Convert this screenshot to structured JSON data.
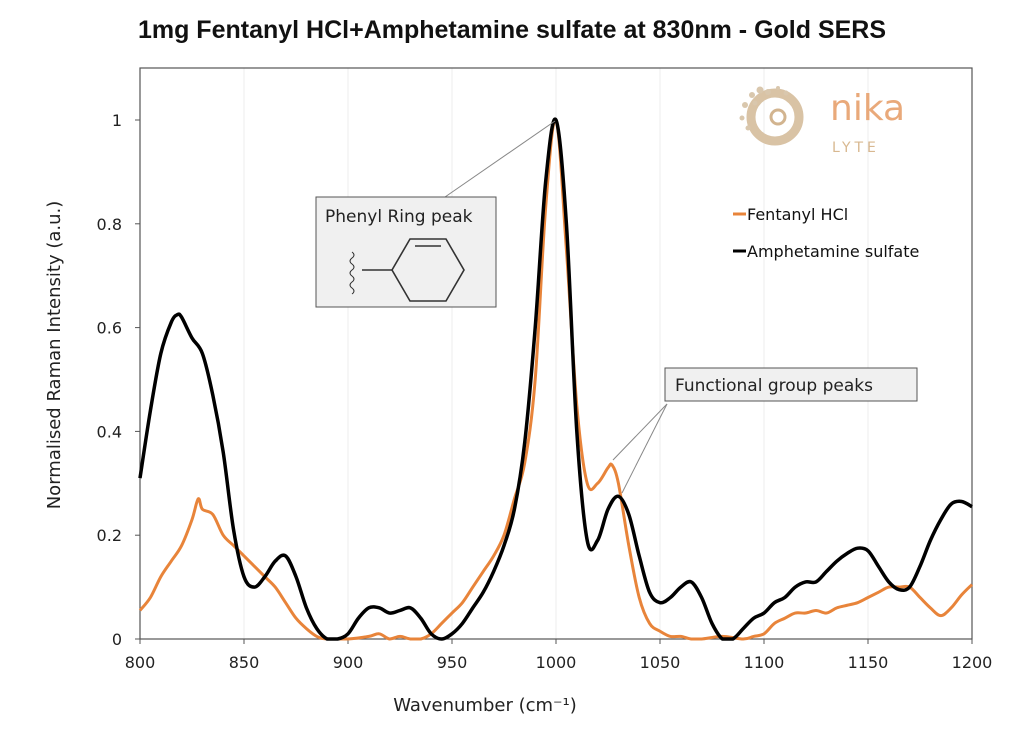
{
  "title": "1mg Fentanyl HCl+Amphetamine sulfate at 830nm - Gold SERS",
  "logo": {
    "text_top": "nika",
    "text_bottom": "LYTE"
  },
  "chart_data": {
    "type": "line",
    "title": "1mg Fentanyl HCl+Amphetamine sulfate at 830nm - Gold SERS",
    "xlabel": "Wavenumber (cm⁻¹)",
    "ylabel": "Normalised Raman Intensity (a.u.)",
    "xlim": [
      800,
      1200
    ],
    "ylim": [
      0,
      1.1
    ],
    "xticks": [
      800,
      850,
      900,
      950,
      1000,
      1050,
      1100,
      1150,
      1200
    ],
    "yticks": [
      0,
      0.2,
      0.4,
      0.6,
      0.8,
      1
    ],
    "ytick_labels": [
      "0",
      "0.2",
      "0.4",
      "0.6",
      "0.8",
      "1"
    ],
    "grid": "vertical",
    "legend": "right",
    "annotations": [
      {
        "text": "Phenyl Ring peak",
        "points_to": [
          1000,
          1.0
        ]
      },
      {
        "text": "Functional group peaks",
        "points_to": [
          [
            1027,
            0.335
          ],
          [
            1030,
            0.275
          ]
        ]
      }
    ],
    "series": [
      {
        "name": "Fentanyl HCl",
        "color": "#e8843a",
        "x": [
          800,
          805,
          810,
          815,
          820,
          825,
          828,
          830,
          835,
          840,
          845,
          850,
          855,
          860,
          865,
          870,
          875,
          880,
          885,
          890,
          900,
          910,
          915,
          920,
          925,
          930,
          935,
          940,
          945,
          950,
          955,
          960,
          965,
          970,
          975,
          980,
          985,
          990,
          995,
          1000,
          1005,
          1010,
          1015,
          1020,
          1025,
          1027,
          1030,
          1035,
          1040,
          1045,
          1050,
          1055,
          1060,
          1065,
          1070,
          1080,
          1090,
          1095,
          1100,
          1105,
          1110,
          1115,
          1120,
          1125,
          1130,
          1135,
          1140,
          1145,
          1150,
          1155,
          1160,
          1165,
          1170,
          1175,
          1180,
          1185,
          1190,
          1195,
          1200
        ],
        "y": [
          0.055,
          0.08,
          0.12,
          0.15,
          0.18,
          0.23,
          0.27,
          0.25,
          0.24,
          0.2,
          0.18,
          0.16,
          0.14,
          0.12,
          0.1,
          0.07,
          0.04,
          0.02,
          0.005,
          0,
          0,
          0.005,
          0.01,
          0,
          0.005,
          0,
          0,
          0.01,
          0.03,
          0.05,
          0.07,
          0.1,
          0.13,
          0.16,
          0.2,
          0.27,
          0.34,
          0.5,
          0.83,
          1.0,
          0.75,
          0.45,
          0.3,
          0.3,
          0.33,
          0.335,
          0.3,
          0.18,
          0.08,
          0.03,
          0.015,
          0.005,
          0.005,
          0,
          0,
          0.005,
          0,
          0.005,
          0.01,
          0.03,
          0.04,
          0.05,
          0.05,
          0.055,
          0.05,
          0.06,
          0.065,
          0.07,
          0.08,
          0.09,
          0.1,
          0.1,
          0.1,
          0.08,
          0.06,
          0.045,
          0.06,
          0.085,
          0.105
        ]
      },
      {
        "name": "Amphetamine sulfate",
        "color": "#000000",
        "x": [
          800,
          805,
          810,
          815,
          818,
          820,
          825,
          830,
          835,
          840,
          845,
          850,
          855,
          860,
          865,
          870,
          875,
          880,
          885,
          890,
          895,
          900,
          905,
          910,
          915,
          920,
          925,
          930,
          935,
          940,
          945,
          950,
          955,
          960,
          965,
          970,
          975,
          980,
          985,
          990,
          995,
          1000,
          1005,
          1010,
          1015,
          1020,
          1025,
          1030,
          1035,
          1040,
          1045,
          1050,
          1055,
          1060,
          1065,
          1070,
          1075,
          1080,
          1085,
          1090,
          1095,
          1100,
          1105,
          1110,
          1115,
          1120,
          1125,
          1130,
          1135,
          1140,
          1145,
          1150,
          1155,
          1160,
          1165,
          1170,
          1175,
          1180,
          1185,
          1190,
          1195,
          1200
        ],
        "y": [
          0.31,
          0.44,
          0.55,
          0.61,
          0.625,
          0.62,
          0.58,
          0.55,
          0.47,
          0.36,
          0.21,
          0.12,
          0.1,
          0.12,
          0.15,
          0.16,
          0.12,
          0.06,
          0.02,
          0,
          0,
          0.01,
          0.04,
          0.06,
          0.06,
          0.05,
          0.055,
          0.06,
          0.04,
          0.01,
          0,
          0.01,
          0.03,
          0.06,
          0.09,
          0.13,
          0.18,
          0.25,
          0.38,
          0.6,
          0.88,
          1.0,
          0.8,
          0.4,
          0.19,
          0.19,
          0.25,
          0.275,
          0.24,
          0.16,
          0.09,
          0.07,
          0.08,
          0.1,
          0.11,
          0.08,
          0.03,
          0,
          0,
          0.02,
          0.04,
          0.05,
          0.07,
          0.08,
          0.1,
          0.11,
          0.11,
          0.13,
          0.15,
          0.165,
          0.175,
          0.17,
          0.14,
          0.11,
          0.095,
          0.1,
          0.14,
          0.19,
          0.23,
          0.26,
          0.265,
          0.255
        ]
      }
    ]
  }
}
